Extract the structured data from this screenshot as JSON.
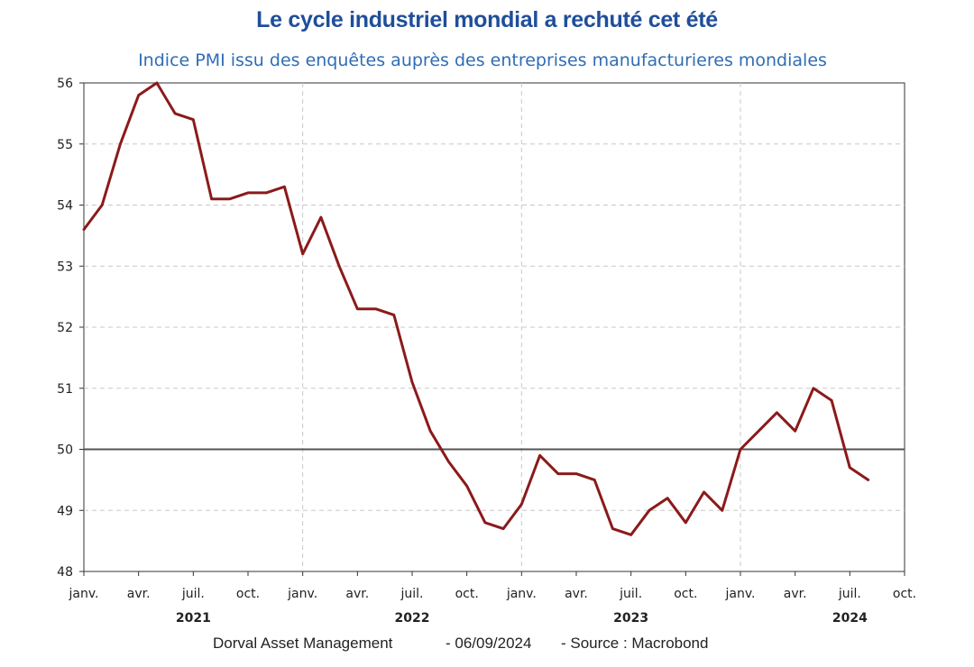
{
  "chart_data": {
    "type": "line",
    "title": "Le cycle industriel mondial a rechuté cet été",
    "subtitle": "Indice PMI issu des enquêtes auprès des entreprises manufacturieres mondiales",
    "x_start": "2021-01",
    "x_end": "2024-10",
    "ylim": [
      48,
      56
    ],
    "yticks": [
      48,
      49,
      50,
      51,
      52,
      53,
      54,
      55,
      56
    ],
    "reference_line": 50,
    "grid": true,
    "xtick_labels": [
      {
        "label": "janv.",
        "date": "2021-01"
      },
      {
        "label": "avr.",
        "date": "2021-04"
      },
      {
        "label": "juil.",
        "date": "2021-07"
      },
      {
        "label": "oct.",
        "date": "2021-10"
      },
      {
        "label": "janv.",
        "date": "2022-01"
      },
      {
        "label": "avr.",
        "date": "2022-04"
      },
      {
        "label": "juil.",
        "date": "2022-07"
      },
      {
        "label": "oct.",
        "date": "2022-10"
      },
      {
        "label": "janv.",
        "date": "2023-01"
      },
      {
        "label": "avr.",
        "date": "2023-04"
      },
      {
        "label": "juil.",
        "date": "2023-07"
      },
      {
        "label": "oct.",
        "date": "2023-10"
      },
      {
        "label": "janv.",
        "date": "2024-01"
      },
      {
        "label": "avr.",
        "date": "2024-04"
      },
      {
        "label": "juil.",
        "date": "2024-07"
      },
      {
        "label": "oct.",
        "date": "2024-10"
      }
    ],
    "year_labels": [
      {
        "label": "2021",
        "date": "2021-07"
      },
      {
        "label": "2022",
        "date": "2022-07"
      },
      {
        "label": "2023",
        "date": "2023-07"
      },
      {
        "label": "2024",
        "date": "2024-07"
      }
    ],
    "series": [
      {
        "color": "#8b1a1a",
        "x": [
          "2021-01",
          "2021-02",
          "2021-03",
          "2021-04",
          "2021-05",
          "2021-06",
          "2021-07",
          "2021-08",
          "2021-09",
          "2021-10",
          "2021-11",
          "2021-12",
          "2022-01",
          "2022-02",
          "2022-03",
          "2022-04",
          "2022-05",
          "2022-06",
          "2022-07",
          "2022-08",
          "2022-09",
          "2022-10",
          "2022-11",
          "2022-12",
          "2023-01",
          "2023-02",
          "2023-03",
          "2023-04",
          "2023-05",
          "2023-06",
          "2023-07",
          "2023-08",
          "2023-09",
          "2023-10",
          "2023-11",
          "2023-12",
          "2024-01",
          "2024-02",
          "2024-03",
          "2024-04",
          "2024-05",
          "2024-06",
          "2024-07",
          "2024-08"
        ],
        "values": [
          53.6,
          54.0,
          55.0,
          55.8,
          56.0,
          55.5,
          55.4,
          54.1,
          54.1,
          54.2,
          54.2,
          54.3,
          53.2,
          53.8,
          53.0,
          52.3,
          52.3,
          52.2,
          51.1,
          50.3,
          49.8,
          49.4,
          48.8,
          48.7,
          49.1,
          49.9,
          49.6,
          49.6,
          49.5,
          48.7,
          48.6,
          49.0,
          49.2,
          48.8,
          49.3,
          49.0,
          50.0,
          50.3,
          50.6,
          50.3,
          51.0,
          50.8,
          49.7,
          49.5
        ]
      }
    ]
  },
  "footer": {
    "author": "Dorval Asset Management",
    "date": "-  06/09/2024",
    "source": "-   Source : Macrobond"
  }
}
